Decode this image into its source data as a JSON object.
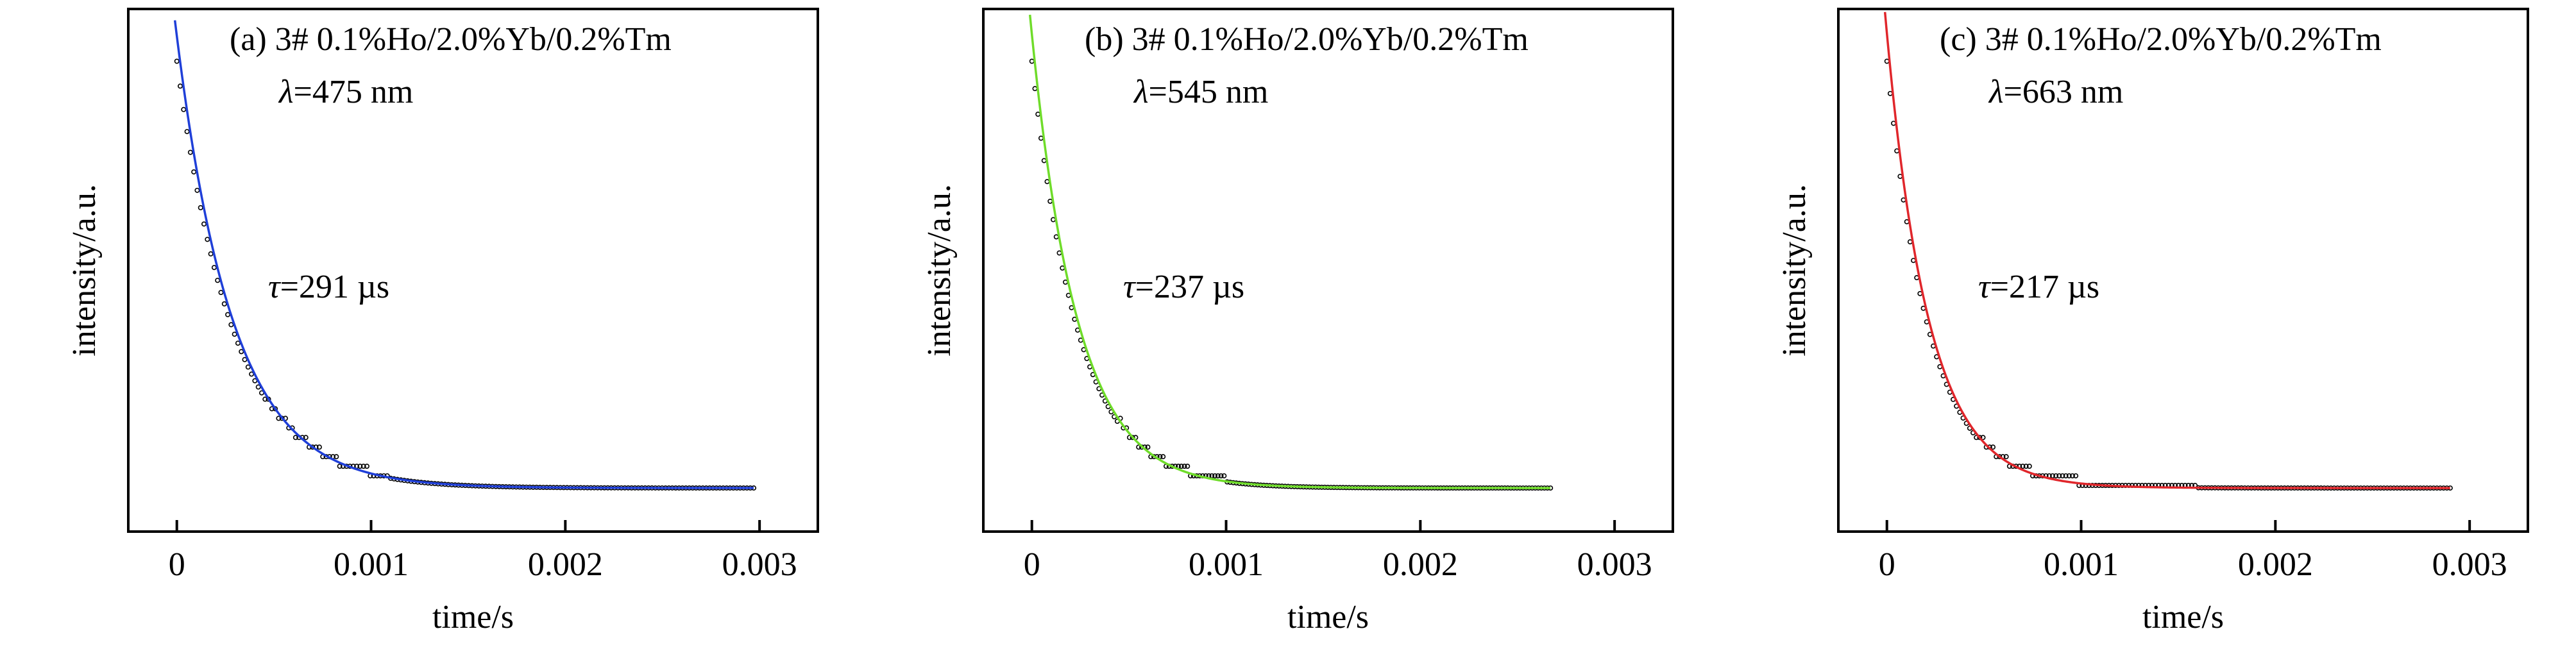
{
  "chart_data": [
    {
      "type": "scatter",
      "panel": "(a)",
      "title": "(a) 3# 0.1%Ho/2.0%Yb/0.2%Tm",
      "wavelength_text": "=475 nm",
      "wavelength_symbol": "λ",
      "tau_text": "=291 µs",
      "tau_symbol": "τ",
      "xlabel": "time/s",
      "ylabel": "intensity/a.u.",
      "xlim": [
        -0.00025,
        0.0033
      ],
      "ylim": [
        -0.1,
        1.1
      ],
      "x_ticks": [
        0,
        0.001,
        0.002,
        0.003
      ],
      "x_tick_labels": [
        "0",
        "0.001",
        "0.002",
        "0.003"
      ],
      "fit_color": "#1f3fd8",
      "decay": {
        "tau": 0.000291,
        "x_end": 0.00297,
        "y0": 0.98,
        "step_until": 0.0011
      },
      "series": [
        {
          "role": "measured",
          "marker": "open-circle"
        },
        {
          "role": "fit",
          "line": "solid"
        }
      ]
    },
    {
      "type": "scatter",
      "panel": "(b)",
      "title": "(b) 3# 0.1%Ho/2.0%Yb/0.2%Tm",
      "wavelength_text": "=545 nm",
      "wavelength_symbol": "λ",
      "tau_text": "=237 µs",
      "tau_symbol": "τ",
      "xlabel": "time/s",
      "ylabel": "intensity/a.u.",
      "xlim": [
        -0.00025,
        0.0033
      ],
      "ylim": [
        -0.1,
        1.1
      ],
      "x_ticks": [
        0,
        0.001,
        0.002,
        0.003
      ],
      "x_tick_labels": [
        "0",
        "0.001",
        "0.002",
        "0.003"
      ],
      "fit_color": "#6fdc2a",
      "decay": {
        "tau": 0.000237,
        "x_end": 0.00267,
        "y0": 0.98,
        "step_until": 0.001
      },
      "series": [
        {
          "role": "measured",
          "marker": "open-circle"
        },
        {
          "role": "fit",
          "line": "solid"
        }
      ]
    },
    {
      "type": "scatter",
      "panel": "(c)",
      "title": "(c) 3# 0.1%Ho/2.0%Yb/0.2%Tm",
      "wavelength_text": "=663 nm",
      "wavelength_symbol": "λ",
      "tau_text": "=217 µs",
      "tau_symbol": "τ",
      "xlabel": "time/s",
      "ylabel": "intensity/a.u.",
      "xlim": [
        -0.00025,
        0.0033
      ],
      "ylim": [
        -0.1,
        1.1
      ],
      "x_ticks": [
        0,
        0.001,
        0.002,
        0.003
      ],
      "x_tick_labels": [
        "0",
        "0.001",
        "0.002",
        "0.003"
      ],
      "fit_color": "#e0262b",
      "decay": {
        "tau": 0.000217,
        "x_end": 0.0029,
        "y0": 0.98,
        "step_until": 0.0016
      },
      "series": [
        {
          "role": "measured",
          "marker": "open-circle"
        },
        {
          "role": "fit",
          "line": "solid"
        }
      ]
    }
  ]
}
